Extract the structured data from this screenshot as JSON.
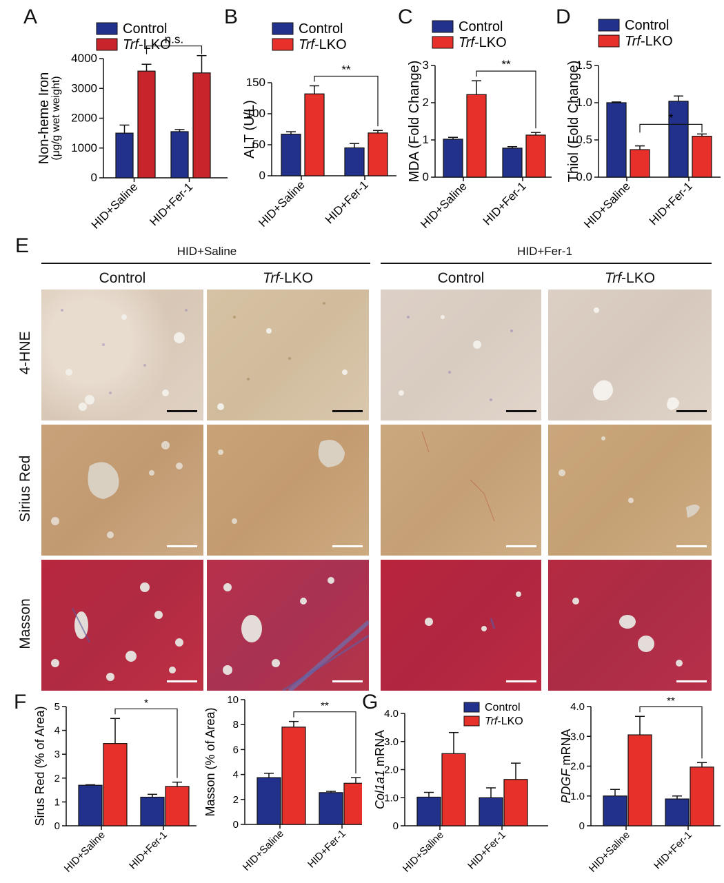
{
  "colors": {
    "control_dark": "#22318c",
    "control_light": "#2d3f9a",
    "trf_dark": "#c8242b",
    "trf_red": "#e8302a"
  },
  "panel_letters": {
    "A": "A",
    "B": "B",
    "C": "C",
    "D": "D",
    "E": "E",
    "F": "F",
    "G": "G"
  },
  "panel_E": {
    "groups": [
      "HID+Saline",
      "HID+Fer-1"
    ],
    "columns": [
      "Control",
      "Trf-LKO",
      "Control",
      "Trf-LKO"
    ],
    "rows": [
      "4-HNE",
      "Sirius Red",
      "Masson"
    ],
    "scale_bar_colors": [
      "#111111",
      "#ffffff",
      "#ffffff"
    ]
  },
  "chart_data": [
    {
      "panel": "A",
      "type": "bar",
      "categories": [
        "HID+Saline",
        "HID+Fer-1"
      ],
      "series": [
        {
          "name": "Control",
          "values": [
            1500,
            1550
          ],
          "errors": [
            270,
            70
          ]
        },
        {
          "name": "Trf-LKO",
          "values": [
            3580,
            3520
          ],
          "errors": [
            230,
            580
          ]
        }
      ],
      "ylabel": "Non-heme Iron",
      "ylabel2": "(μg/g wet weight)",
      "ylim": [
        0,
        4000
      ],
      "yticks": [
        "0",
        "1000",
        "2000",
        "3000",
        "4000"
      ],
      "significance": [
        {
          "label": "n.s."
        }
      ],
      "legend": "top"
    },
    {
      "panel": "B",
      "type": "bar",
      "categories": [
        "HID+Saline",
        "HID+Fer-1"
      ],
      "series": [
        {
          "name": "Control",
          "values": [
            67,
            45
          ],
          "errors": [
            4,
            7
          ]
        },
        {
          "name": "Trf-LKO",
          "values": [
            132,
            69
          ],
          "errors": [
            13,
            4
          ]
        }
      ],
      "ylabel": "ALT (U/L)",
      "ylim": [
        0,
        150
      ],
      "yticks": [
        "0",
        "50",
        "100",
        "150"
      ],
      "significance": [
        {
          "label": "**"
        }
      ],
      "legend": "top"
    },
    {
      "panel": "C",
      "type": "bar",
      "categories": [
        "HID+Saline",
        "HID+Fer-1"
      ],
      "series": [
        {
          "name": "Control",
          "values": [
            1.02,
            0.78
          ],
          "errors": [
            0.05,
            0.04
          ]
        },
        {
          "name": "Trf-LKO",
          "values": [
            2.22,
            1.13
          ],
          "errors": [
            0.37,
            0.07
          ]
        }
      ],
      "ylabel": "MDA (Fold Change)",
      "ylim": [
        0,
        3
      ],
      "yticks": [
        "0",
        "1",
        "2",
        "3"
      ],
      "significance": [
        {
          "label": "**"
        }
      ],
      "legend": "top"
    },
    {
      "panel": "D",
      "type": "bar",
      "categories": [
        "HID+Saline",
        "HID+Fer-1"
      ],
      "series": [
        {
          "name": "Control",
          "values": [
            1.0,
            1.02
          ],
          "errors": [
            0.01,
            0.07
          ]
        },
        {
          "name": "Trf-LKO",
          "values": [
            0.37,
            0.55
          ],
          "errors": [
            0.05,
            0.03
          ]
        }
      ],
      "ylabel": "Thiol (Fold Change)",
      "ylim": [
        0,
        1.5
      ],
      "yticks": [
        "0.0",
        "0.5",
        "1.0",
        "1.5"
      ],
      "significance": [
        {
          "label": "*"
        }
      ],
      "legend": "top"
    },
    {
      "panel": "F-left",
      "type": "bar",
      "categories": [
        "HID+Saline",
        "HID+Fer-1"
      ],
      "series": [
        {
          "name": "Control",
          "values": [
            1.7,
            1.2
          ],
          "errors": [
            0.02,
            0.12
          ]
        },
        {
          "name": "Trf-LKO",
          "values": [
            3.45,
            1.65
          ],
          "errors": [
            1.05,
            0.18
          ]
        }
      ],
      "ylabel": "Sirus Red (% of Area)",
      "ylim": [
        0,
        5
      ],
      "yticks": [
        "0",
        "1",
        "2",
        "3",
        "4",
        "5"
      ],
      "significance": [
        {
          "label": "*"
        }
      ]
    },
    {
      "panel": "F-right",
      "type": "bar",
      "categories": [
        "HID+Saline",
        "HID+Fer-1"
      ],
      "series": [
        {
          "name": "Control",
          "values": [
            3.75,
            2.55
          ],
          "errors": [
            0.35,
            0.1
          ]
        },
        {
          "name": "Trf-LKO",
          "values": [
            7.8,
            3.3
          ],
          "errors": [
            0.45,
            0.45
          ]
        }
      ],
      "ylabel": "Masson (% of Area)",
      "ylim": [
        0,
        10
      ],
      "yticks": [
        "0",
        "2",
        "4",
        "6",
        "8",
        "10"
      ],
      "significance": [
        {
          "label": "**"
        }
      ]
    },
    {
      "panel": "G-left",
      "type": "bar",
      "categories": [
        "HID+Saline",
        "HID+Fer-1"
      ],
      "series": [
        {
          "name": "Control",
          "values": [
            1.02,
            1.0
          ],
          "errors": [
            0.17,
            0.35
          ]
        },
        {
          "name": "Trf-LKO",
          "values": [
            2.57,
            1.65
          ],
          "errors": [
            0.75,
            0.58
          ]
        }
      ],
      "ylabel": "Col1a1 mRNA",
      "ylim": [
        0,
        4
      ],
      "yticks": [
        "0",
        "1.0",
        "2.0",
        "3.0",
        "4.0"
      ],
      "significance": [],
      "legend": "top"
    },
    {
      "panel": "G-right",
      "type": "bar",
      "categories": [
        "HID+Saline",
        "HID+Fer-1"
      ],
      "series": [
        {
          "name": "Control",
          "values": [
            1.0,
            0.9
          ],
          "errors": [
            0.22,
            0.1
          ]
        },
        {
          "name": "Trf-LKO",
          "values": [
            3.05,
            1.97
          ],
          "errors": [
            0.62,
            0.15
          ]
        }
      ],
      "ylabel": "PDGF mRNA",
      "ylim": [
        0,
        4
      ],
      "yticks": [
        "0",
        "1.0",
        "2.0",
        "3.0",
        "4.0"
      ],
      "significance": [
        {
          "label": "**"
        }
      ]
    }
  ]
}
